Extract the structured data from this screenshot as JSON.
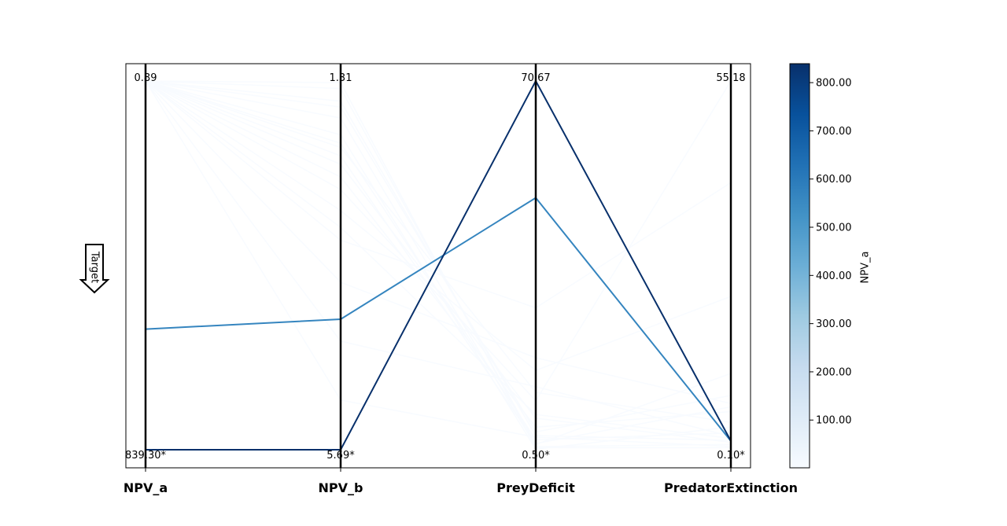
{
  "chart_data": {
    "type": "parallel-coordinates",
    "axes": [
      {
        "name": "NPV_a",
        "top_label": "0.89",
        "bottom_label": "839.30*",
        "top": 0.89,
        "bottom": 839.3
      },
      {
        "name": "NPV_b",
        "top_label": "1.31",
        "bottom_label": "5.69*",
        "top": 1.31,
        "bottom": 5.69
      },
      {
        "name": "PreyDeficit",
        "top_label": "70.67",
        "bottom_label": "0.50*",
        "top": 70.67,
        "bottom": 0.5
      },
      {
        "name": "PredatorExtinction",
        "top_label": "55.18",
        "bottom_label": "0.10*",
        "top": 55.18,
        "bottom": 0.1
      }
    ],
    "target_label": "Target",
    "colorbar": {
      "label": "NPV_a",
      "ticks": [
        "100.00",
        "200.00",
        "300.00",
        "400.00",
        "500.00",
        "600.00",
        "700.00",
        "800.00"
      ],
      "tick_values": [
        100,
        200,
        300,
        400,
        500,
        600,
        700,
        800
      ],
      "range": [
        0.89,
        839.3
      ],
      "colormap": "Blues",
      "colors": [
        "#f7fbff",
        "#deebf7",
        "#c6dbef",
        "#9ecae1",
        "#6baed6",
        "#4292c6",
        "#2171b5",
        "#08519c",
        "#08306b"
      ]
    },
    "solutions": [
      {
        "values": [
          839.3,
          5.69,
          70.67,
          1.4
        ],
        "color_value": 839.3
      },
      {
        "values": [
          565.0,
          4.14,
          48.44,
          1.4
        ],
        "color_value": 565.0
      },
      {
        "values": [
          0.89,
          2.3,
          6.5,
          1.2
        ],
        "color_value": 0.89
      },
      {
        "values": [
          0.89,
          1.55,
          3.2,
          1.5
        ],
        "color_value": 0.89
      },
      {
        "values": [
          0.89,
          1.75,
          1.1,
          0.9
        ],
        "color_value": 0.89
      },
      {
        "values": [
          0.89,
          2.05,
          2.4,
          2.6
        ],
        "color_value": 0.89
      },
      {
        "values": [
          0.89,
          2.6,
          9.8,
          55.18
        ],
        "color_value": 0.89
      },
      {
        "values": [
          0.89,
          3.2,
          27.5,
          40.0
        ],
        "color_value": 0.89
      },
      {
        "values": [
          0.89,
          2.85,
          15.6,
          23.0
        ],
        "color_value": 0.89
      },
      {
        "values": [
          0.89,
          1.4,
          1.5,
          11.5
        ],
        "color_value": 0.89
      },
      {
        "values": [
          0.89,
          3.7,
          18.0,
          7.0
        ],
        "color_value": 0.89
      },
      {
        "values": [
          0.89,
          2.1,
          11.4,
          4.2
        ],
        "color_value": 0.89
      },
      {
        "values": [
          0.89,
          1.95,
          0.6,
          3.5
        ],
        "color_value": 0.89
      },
      {
        "values": [
          0.89,
          2.45,
          4.8,
          5.8
        ],
        "color_value": 0.89
      },
      {
        "values": [
          0.89,
          1.62,
          3.9,
          8.2
        ],
        "color_value": 0.89
      },
      {
        "values": [
          0.89,
          4.4,
          12.5,
          2.1
        ],
        "color_value": 0.89
      },
      {
        "values": [
          0.89,
          3.05,
          7.2,
          1.8
        ],
        "color_value": 0.89
      },
      {
        "values": [
          0.89,
          5.1,
          2.9,
          0.6
        ],
        "color_value": 0.89
      },
      {
        "values": [
          0.89,
          1.33,
          0.9,
          0.4
        ],
        "color_value": 0.89
      },
      {
        "values": [
          0.89,
          2.2,
          1.7,
          6.5
        ],
        "color_value": 0.89
      }
    ]
  }
}
